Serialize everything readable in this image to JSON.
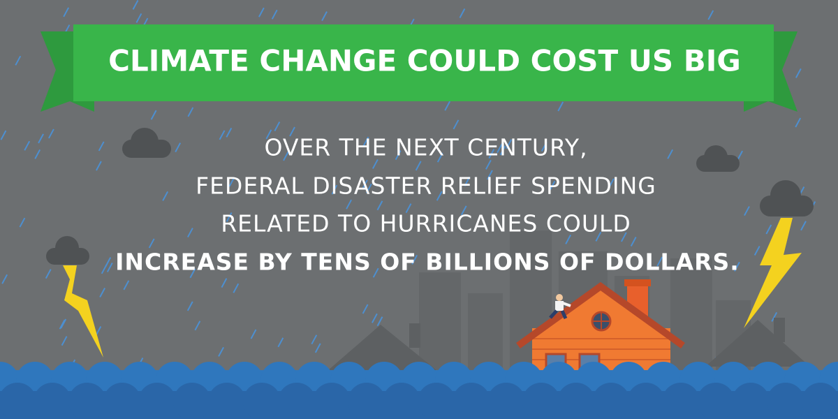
{
  "banner": {
    "title": "CLIMATE CHANGE COULD COST US BIG"
  },
  "message": {
    "lines": [
      "OVER THE NEXT CENTURY,",
      "FEDERAL DISASTER RELIEF SPENDING",
      "RELATED TO HURRICANES COULD"
    ],
    "emphasis": "INCREASE BY TENS OF BILLIONS OF DOLLARS."
  }
}
